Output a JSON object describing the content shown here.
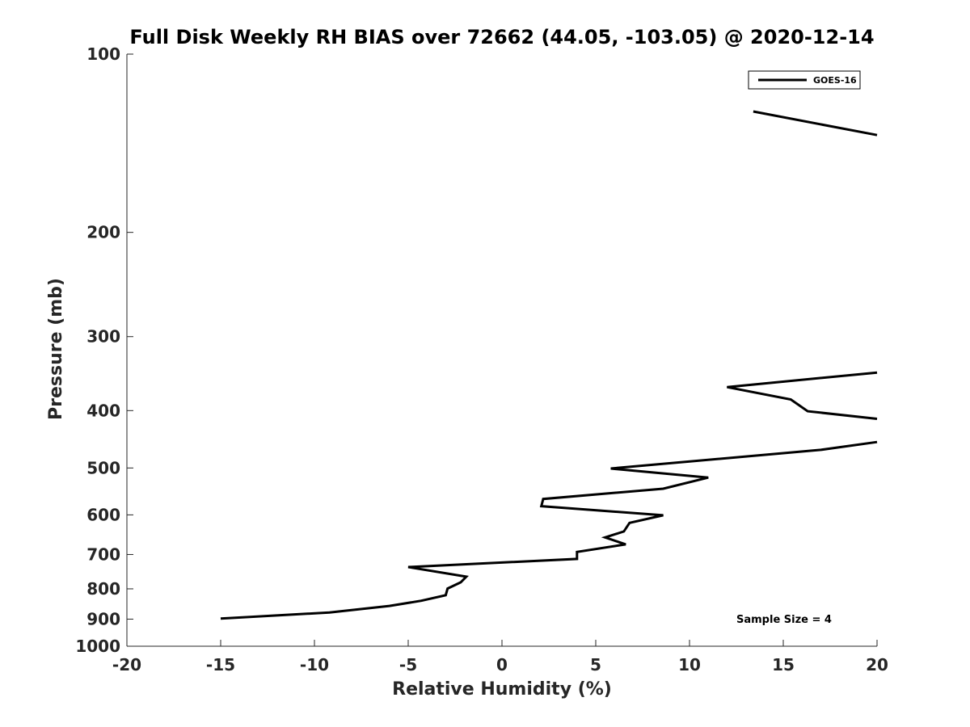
{
  "chart_data": {
    "type": "line",
    "title": "Full Disk Weekly RH BIAS over 72662 (44.05, -103.05) @ 2020-12-14",
    "xlabel": "Relative Humidity (%)",
    "ylabel": "Pressure (mb)",
    "xlim": [
      -20,
      20
    ],
    "ylim": [
      100,
      1000
    ],
    "y_scale": "log",
    "y_reversed": true,
    "x_ticks": [
      "-20",
      "-15",
      "-10",
      "-5",
      "0",
      "5",
      "10",
      "15",
      "20"
    ],
    "y_ticks": [
      "100",
      "200",
      "300",
      "400",
      "500",
      "600",
      "700",
      "800",
      "900",
      "1000"
    ],
    "grid": false,
    "legend": {
      "entries": [
        "GOES-16"
      ],
      "placement": "top-right"
    },
    "annotation": "Sample Size = 4",
    "series": [
      {
        "name": "GOES-16",
        "color": "#000000",
        "segments": [
          [
            [
              13.4,
              125
            ],
            [
              20,
              137
            ]
          ],
          [
            [
              20,
              345
            ],
            [
              12.0,
              365
            ],
            [
              15.4,
              383
            ],
            [
              16.3,
              401
            ],
            [
              20,
              413
            ]
          ],
          [
            [
              20,
              452
            ],
            [
              17.0,
              466
            ],
            [
              5.8,
              501
            ],
            [
              11.0,
              519
            ],
            [
              8.6,
              542
            ],
            [
              2.2,
              564
            ],
            [
              2.1,
              580
            ],
            [
              8.6,
              601
            ],
            [
              6.8,
              619
            ],
            [
              6.5,
              640
            ],
            [
              5.5,
              655
            ],
            [
              6.6,
              673
            ],
            [
              4.0,
              693
            ],
            [
              4.0,
              712
            ],
            [
              -5.0,
              735
            ],
            [
              -1.9,
              763
            ],
            [
              -2.2,
              780
            ],
            [
              -2.9,
              799
            ],
            [
              -3.0,
              820
            ],
            [
              -4.3,
              838
            ],
            [
              -6.0,
              855
            ],
            [
              -9.2,
              877
            ],
            [
              -15.0,
              898
            ]
          ]
        ]
      }
    ]
  }
}
